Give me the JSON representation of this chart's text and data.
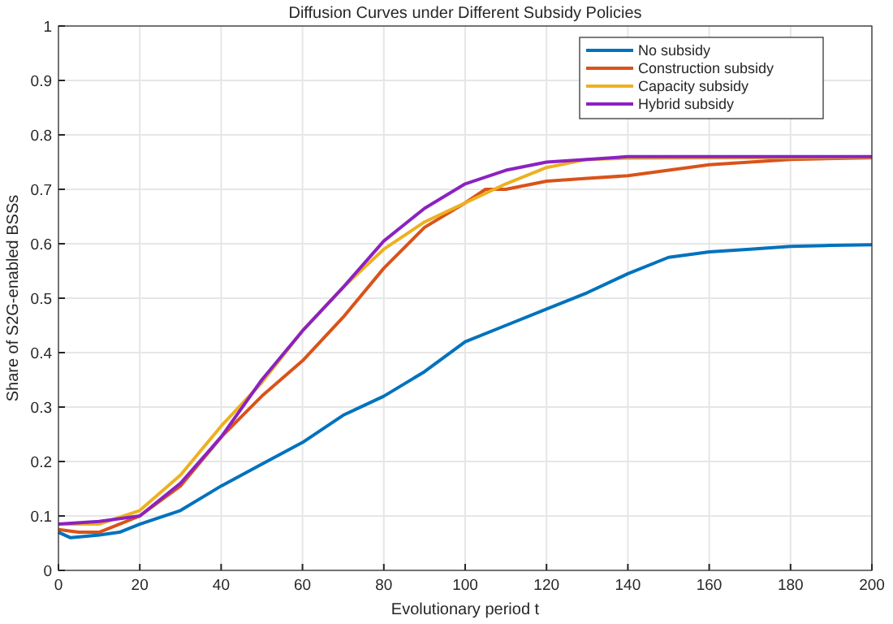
{
  "chart_data": {
    "type": "line",
    "title": "Diffusion Curves under Different Subsidy Policies",
    "xlabel": "Evolutionary period t",
    "ylabel": "Share of S2G-enabled BSSs",
    "xlim": [
      0,
      200
    ],
    "ylim": [
      0,
      1
    ],
    "xticks": [
      0,
      20,
      40,
      60,
      80,
      100,
      120,
      140,
      160,
      180,
      200
    ],
    "yticks": [
      0,
      0.1,
      0.2,
      0.3,
      0.4,
      0.5,
      0.6,
      0.7,
      0.8,
      0.9,
      1
    ],
    "grid": true,
    "legend": "top right",
    "marker": "none",
    "line_style": "solid",
    "series": [
      {
        "name": "No subsidy",
        "color": "#0072bd",
        "x": [
          0,
          3,
          10,
          15,
          20,
          30,
          40,
          50,
          60,
          70,
          80,
          90,
          100,
          110,
          120,
          130,
          140,
          150,
          160,
          170,
          180,
          190,
          200
        ],
        "values": [
          0.07,
          0.06,
          0.065,
          0.07,
          0.085,
          0.11,
          0.155,
          0.195,
          0.235,
          0.285,
          0.32,
          0.365,
          0.42,
          0.45,
          0.48,
          0.51,
          0.545,
          0.575,
          0.585,
          0.59,
          0.595,
          0.597,
          0.598
        ]
      },
      {
        "name": "Construction subsidy",
        "color": "#d95319",
        "x": [
          0,
          5,
          10,
          15,
          20,
          30,
          40,
          50,
          60,
          70,
          80,
          90,
          100,
          105,
          110,
          120,
          130,
          140,
          150,
          160,
          170,
          180,
          200
        ],
        "values": [
          0.075,
          0.07,
          0.07,
          0.085,
          0.1,
          0.155,
          0.245,
          0.32,
          0.385,
          0.465,
          0.555,
          0.63,
          0.675,
          0.7,
          0.7,
          0.715,
          0.72,
          0.725,
          0.735,
          0.745,
          0.75,
          0.755,
          0.758
        ]
      },
      {
        "name": "Capacity subsidy",
        "color": "#edb120",
        "x": [
          0,
          10,
          20,
          30,
          40,
          50,
          60,
          70,
          80,
          90,
          100,
          110,
          120,
          130,
          140,
          200
        ],
        "values": [
          0.085,
          0.085,
          0.11,
          0.175,
          0.265,
          0.345,
          0.44,
          0.52,
          0.59,
          0.64,
          0.675,
          0.71,
          0.74,
          0.755,
          0.757,
          0.759
        ]
      },
      {
        "name": "Hybrid subsidy",
        "color": "#8b22c0",
        "x": [
          0,
          10,
          20,
          30,
          40,
          50,
          60,
          70,
          80,
          90,
          100,
          110,
          120,
          130,
          140,
          200
        ],
        "values": [
          0.085,
          0.09,
          0.1,
          0.16,
          0.245,
          0.35,
          0.44,
          0.52,
          0.605,
          0.665,
          0.71,
          0.735,
          0.75,
          0.755,
          0.76,
          0.76
        ]
      }
    ]
  }
}
